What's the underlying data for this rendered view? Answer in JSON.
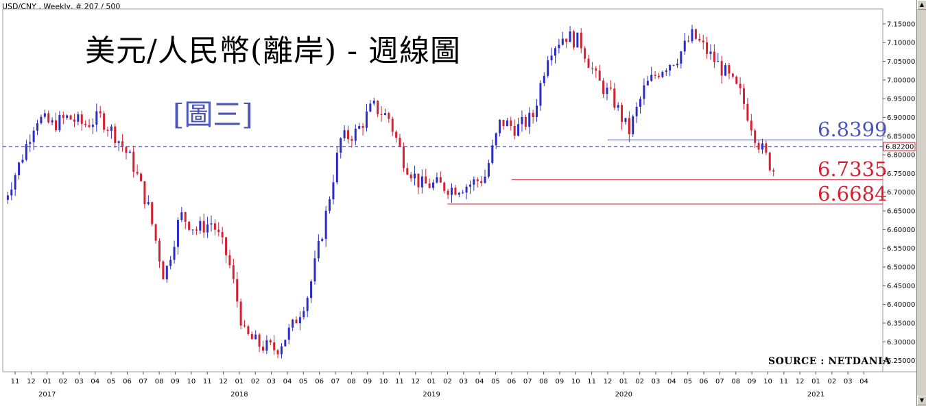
{
  "header": {
    "info": "USD/CNY , Weekly, # 207 / 500",
    "title": "美元/人民幣(離岸) - 週線圖",
    "figure_label": "[圖三]",
    "source": "SOURCE : NETDANIA"
  },
  "colors": {
    "up": "#2b2bc8",
    "down": "#d42030",
    "level_blue": "#4b56b8",
    "level_red": "#d42030",
    "current_line": "#1a1a9a"
  },
  "chart_data": {
    "type": "candlestick",
    "symbol": "USD/CNY",
    "timeframe": "Weekly",
    "ylim": [
      6.22,
      7.19
    ],
    "y_ticks": [
      "7.15000",
      "7.10000",
      "7.05000",
      "7.00000",
      "6.95000",
      "6.90000",
      "6.85000",
      "6.80000",
      "6.75000",
      "6.70000",
      "6.65000",
      "6.60000",
      "6.55000",
      "6.50000",
      "6.45000",
      "6.40000",
      "6.35000",
      "6.30000",
      "6.25000"
    ],
    "current_price": "6.82200",
    "month_ticks": [
      "11",
      "12",
      "01",
      "02",
      "03",
      "04",
      "05",
      "06",
      "07",
      "08",
      "09",
      "10",
      "11",
      "12",
      "01",
      "02",
      "03",
      "04",
      "05",
      "06",
      "07",
      "08",
      "09",
      "10",
      "11",
      "12",
      "01",
      "02",
      "03",
      "04",
      "05",
      "06",
      "07",
      "08",
      "09",
      "10",
      "11",
      "12",
      "01",
      "02",
      "03",
      "04",
      "05",
      "06",
      "07",
      "08",
      "09",
      "10",
      "11",
      "12",
      "01",
      "02",
      "03",
      "04"
    ],
    "year_labels": [
      {
        "label": "2017",
        "month_index": 2
      },
      {
        "label": "2018",
        "month_index": 14
      },
      {
        "label": "2019",
        "month_index": 26
      },
      {
        "label": "2020",
        "month_index": 38
      },
      {
        "label": "2021",
        "month_index": 50
      }
    ],
    "levels": [
      {
        "value": 6.8399,
        "label": "6.8399",
        "color": "blue",
        "from_month_index": 37
      },
      {
        "value": 6.7335,
        "label": "6.7335",
        "color": "red",
        "from_month_index": 31
      },
      {
        "value": 6.6684,
        "label": "6.6684",
        "color": "red",
        "from_month_index": 27
      }
    ],
    "anchors": [
      [
        0,
        6.68
      ],
      [
        1,
        6.78
      ],
      [
        2,
        6.9
      ],
      [
        3,
        6.88
      ],
      [
        4,
        6.9
      ],
      [
        5,
        6.88
      ],
      [
        6,
        6.9
      ],
      [
        7,
        6.85
      ],
      [
        8,
        6.78
      ],
      [
        9,
        6.66
      ],
      [
        10,
        6.47
      ],
      [
        11,
        6.64
      ],
      [
        12,
        6.6
      ],
      [
        13,
        6.62
      ],
      [
        14,
        6.52
      ],
      [
        15,
        6.32
      ],
      [
        16,
        6.29
      ],
      [
        17,
        6.28
      ],
      [
        18,
        6.34
      ],
      [
        19,
        6.43
      ],
      [
        20,
        6.62
      ],
      [
        21,
        6.84
      ],
      [
        22,
        6.86
      ],
      [
        23,
        6.93
      ],
      [
        24,
        6.9
      ],
      [
        25,
        6.78
      ],
      [
        26,
        6.72
      ],
      [
        27,
        6.72
      ],
      [
        28,
        6.71
      ],
      [
        29,
        6.72
      ],
      [
        30,
        6.74
      ],
      [
        31,
        6.89
      ],
      [
        32,
        6.87
      ],
      [
        33,
        6.9
      ],
      [
        34,
        7.08
      ],
      [
        35,
        7.12
      ],
      [
        36,
        7.1
      ],
      [
        37,
        7.0
      ],
      [
        38,
        6.95
      ],
      [
        39,
        6.86
      ],
      [
        40,
        6.98
      ],
      [
        41,
        7.03
      ],
      [
        42,
        7.06
      ],
      [
        43,
        7.12
      ],
      [
        44,
        7.07
      ],
      [
        45,
        7.02
      ],
      [
        46,
        6.96
      ],
      [
        47,
        6.84
      ],
      [
        48,
        6.76
      ]
    ],
    "candles_per_month": 4.33
  }
}
